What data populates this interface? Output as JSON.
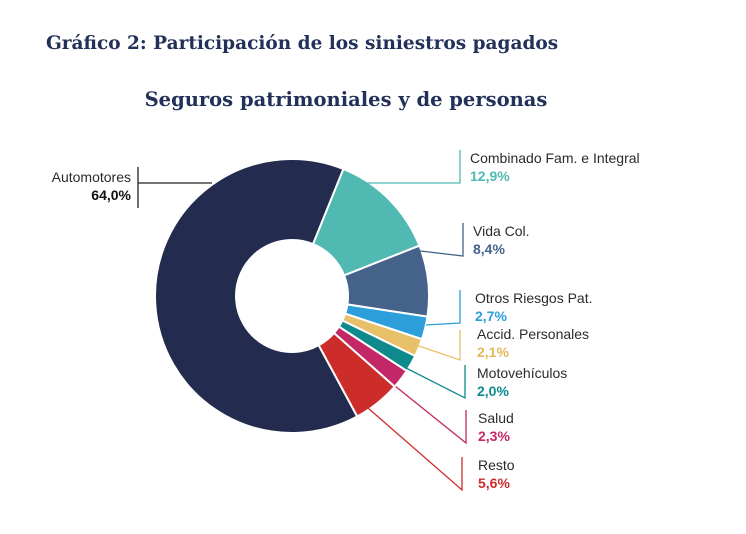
{
  "figure_title": "Gráfico 2: Participación de los siniestros pagados",
  "chart_data": {
    "type": "pie",
    "style": "donut",
    "title": "Seguros patrimoniales y de personas",
    "slices": [
      {
        "label": "Combinado Fam. e Integral",
        "value": 12.9,
        "display": "12,9%",
        "color": "#4fb9b2",
        "label_color": "#4fb9b2"
      },
      {
        "label": "Vida Col.",
        "value": 8.4,
        "display": "8,4%",
        "color": "#45628a",
        "label_color": "#45628a"
      },
      {
        "label": "Otros Riesgos Pat.",
        "value": 2.7,
        "display": "2,7%",
        "color": "#2c9ed9",
        "label_color": "#2c9ed9"
      },
      {
        "label": "Accid. Personales",
        "value": 2.1,
        "display": "2,1%",
        "color": "#e8c06a",
        "label_color": "#e3b85a"
      },
      {
        "label": "Motovehículos",
        "value": 2.0,
        "display": "2,0%",
        "color": "#0e8a8c",
        "label_color": "#0e8a8c"
      },
      {
        "label": "Salud",
        "value": 2.3,
        "display": "2,3%",
        "color": "#c42766",
        "label_color": "#c42766"
      },
      {
        "label": "Resto",
        "value": 5.6,
        "display": "5,6%",
        "color": "#cc2d2a",
        "label_color": "#cc2d2a"
      },
      {
        "label": "Automotores",
        "value": 64.0,
        "display": "64,0%",
        "color": "#232c4e",
        "label_color": "#111111"
      }
    ]
  }
}
